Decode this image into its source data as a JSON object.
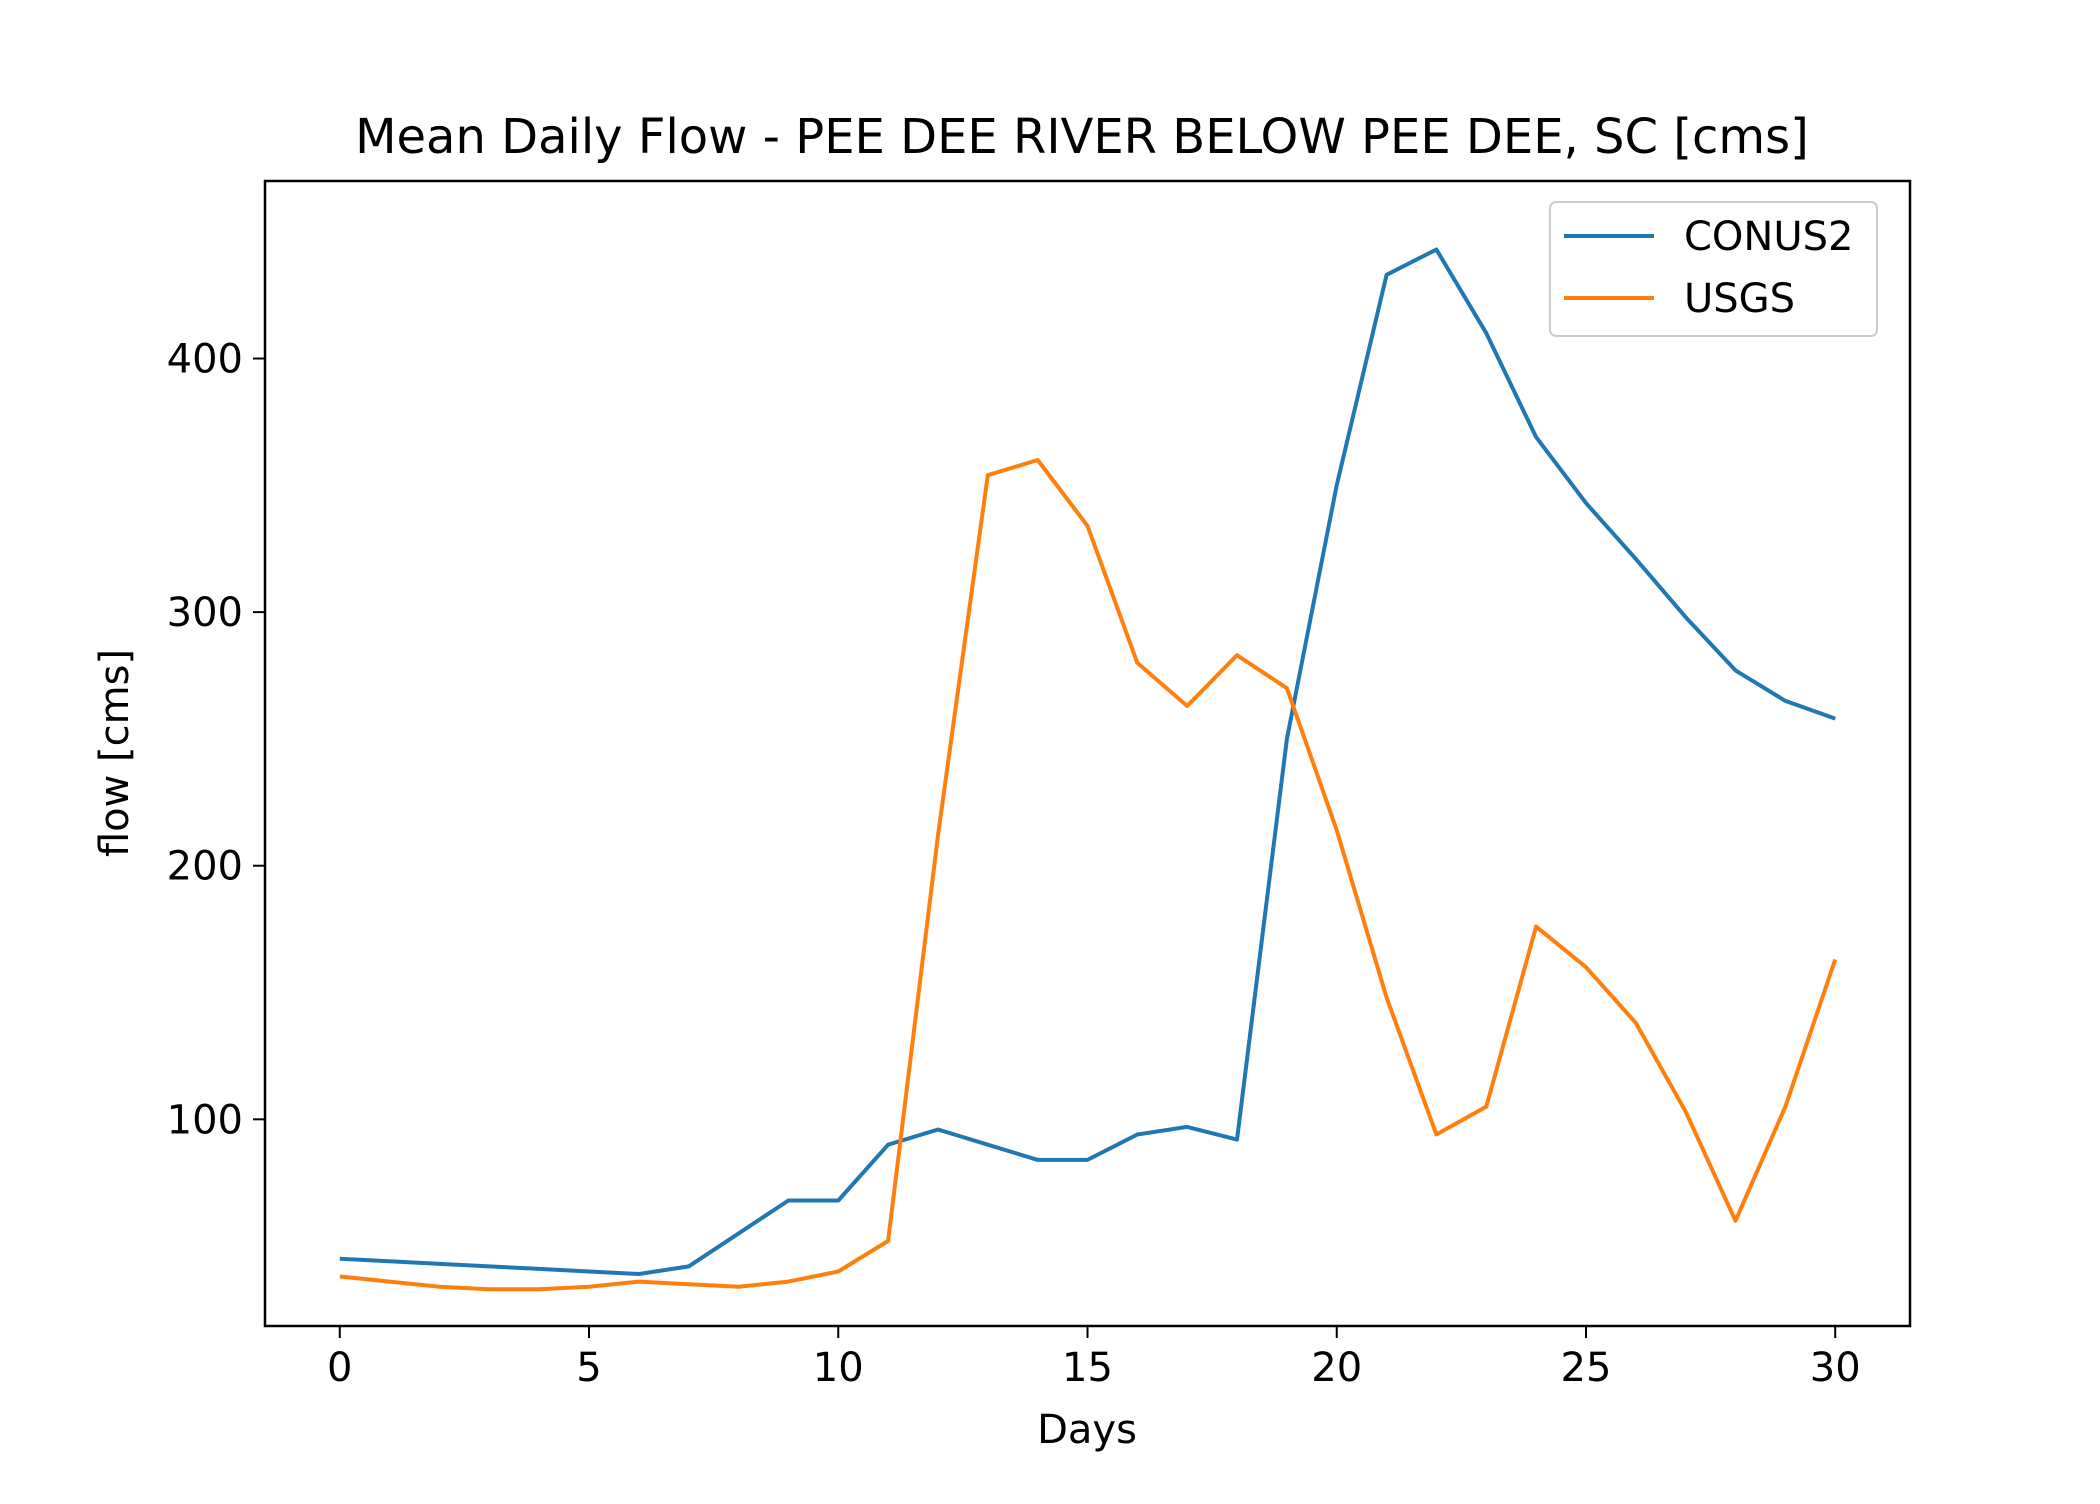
{
  "chart_data": {
    "type": "line",
    "title": "Mean Daily Flow - PEE DEE RIVER BELOW PEE DEE, SC [cms]",
    "xlabel": "Days",
    "ylabel": "flow [cms]",
    "xlim": [
      -1.5,
      31.5
    ],
    "ylim": [
      18.5,
      470
    ],
    "xticks": [
      0,
      5,
      10,
      15,
      20,
      25,
      30
    ],
    "yticks": [
      100,
      200,
      300,
      400
    ],
    "grid": false,
    "legend_position": "upper right",
    "x": [
      0,
      1,
      2,
      3,
      4,
      5,
      6,
      7,
      8,
      9,
      10,
      11,
      12,
      13,
      14,
      15,
      16,
      17,
      18,
      19,
      20,
      21,
      22,
      23,
      24,
      25,
      26,
      27,
      28,
      29,
      30
    ],
    "series": [
      {
        "name": "CONUS2",
        "color": "#1f77b4",
        "values": [
          45,
          44,
          43,
          42,
          41,
          40,
          39,
          42,
          55,
          68,
          68,
          90,
          96,
          90,
          84,
          84,
          94,
          97,
          92,
          250,
          350,
          433,
          443,
          410,
          369,
          343,
          321,
          298,
          277,
          265,
          258
        ]
      },
      {
        "name": "USGS",
        "color": "#ff7f0e",
        "values": [
          38,
          36,
          34,
          33,
          33,
          34,
          36,
          35,
          34,
          36,
          40,
          52,
          212,
          354,
          360,
          334,
          280,
          263,
          283,
          270,
          214,
          148,
          94,
          105,
          176,
          160,
          138,
          103,
          60,
          105,
          163
        ]
      }
    ]
  }
}
